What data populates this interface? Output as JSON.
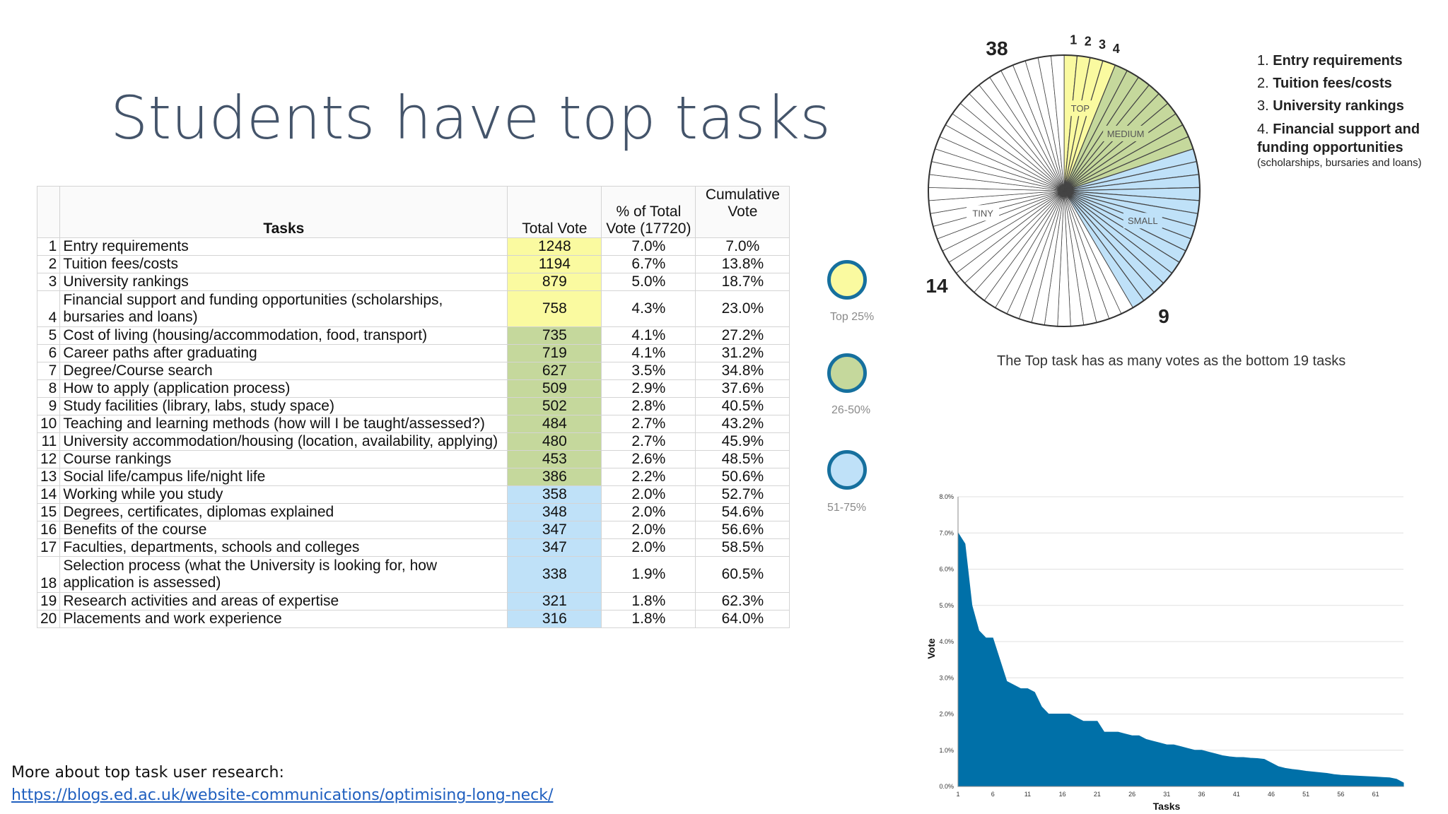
{
  "slide": {
    "title": "Students have top tasks",
    "footer_text": "More about top task user research:",
    "footer_link": "https://blogs.ed.ac.uk/website-communications/optimising-long-neck/"
  },
  "table": {
    "headers": [
      "Tasks",
      "Total Vote",
      "% of Total Vote (17720)",
      "Cumulative Vote"
    ],
    "rows": [
      {
        "n": "1",
        "task": "Entry requirements",
        "vote": "1248",
        "pct": "7.0%",
        "cum": "7.0%",
        "group": "top"
      },
      {
        "n": "2",
        "task": "Tuition fees/costs",
        "vote": "1194",
        "pct": "6.7%",
        "cum": "13.8%",
        "group": "top"
      },
      {
        "n": "3",
        "task": "University rankings",
        "vote": "879",
        "pct": "5.0%",
        "cum": "18.7%",
        "group": "top"
      },
      {
        "n": "4",
        "task": "Financial support and funding opportunities (scholarships, bursaries and loans)",
        "vote": "758",
        "pct": "4.3%",
        "cum": "23.0%",
        "group": "top"
      },
      {
        "n": "5",
        "task": "Cost of living (housing/accommodation, food, transport)",
        "vote": "735",
        "pct": "4.1%",
        "cum": "27.2%",
        "group": "mid"
      },
      {
        "n": "6",
        "task": "Career paths after graduating",
        "vote": "719",
        "pct": "4.1%",
        "cum": "31.2%",
        "group": "mid"
      },
      {
        "n": "7",
        "task": "Degree/Course search",
        "vote": "627",
        "pct": "3.5%",
        "cum": "34.8%",
        "group": "mid"
      },
      {
        "n": "8",
        "task": "How to apply (application process)",
        "vote": "509",
        "pct": "2.9%",
        "cum": "37.6%",
        "group": "mid"
      },
      {
        "n": "9",
        "task": "Study facilities (library, labs, study space)",
        "vote": "502",
        "pct": "2.8%",
        "cum": "40.5%",
        "group": "mid"
      },
      {
        "n": "10",
        "task": "Teaching and learning methods (how will I be taught/assessed?)",
        "vote": "484",
        "pct": "2.7%",
        "cum": "43.2%",
        "group": "mid"
      },
      {
        "n": "11",
        "task": "University accommodation/housing (location, availability, applying)",
        "vote": "480",
        "pct": "2.7%",
        "cum": "45.9%",
        "group": "mid"
      },
      {
        "n": "12",
        "task": "Course rankings",
        "vote": "453",
        "pct": "2.6%",
        "cum": "48.5%",
        "group": "mid"
      },
      {
        "n": "13",
        "task": "Social life/campus life/night life",
        "vote": "386",
        "pct": "2.2%",
        "cum": "50.6%",
        "group": "mid"
      },
      {
        "n": "14",
        "task": "Working while you study",
        "vote": "358",
        "pct": "2.0%",
        "cum": "52.7%",
        "group": "low"
      },
      {
        "n": "15",
        "task": "Degrees, certificates, diplomas explained",
        "vote": "348",
        "pct": "2.0%",
        "cum": "54.6%",
        "group": "low"
      },
      {
        "n": "16",
        "task": "Benefits of the course",
        "vote": "347",
        "pct": "2.0%",
        "cum": "56.6%",
        "group": "low"
      },
      {
        "n": "17",
        "task": "Faculties, departments, schools and colleges",
        "vote": "347",
        "pct": "2.0%",
        "cum": "58.5%",
        "group": "low"
      },
      {
        "n": "18",
        "task": "Selection process (what the University is looking for, how application is assessed)",
        "vote": "338",
        "pct": "1.9%",
        "cum": "60.5%",
        "group": "low"
      },
      {
        "n": "19",
        "task": "Research activities and areas of expertise",
        "vote": "321",
        "pct": "1.8%",
        "cum": "62.3%",
        "group": "low"
      },
      {
        "n": "20",
        "task": "Placements and work experience",
        "vote": "316",
        "pct": "1.8%",
        "cum": "64.0%",
        "group": "low"
      }
    ]
  },
  "colors": {
    "top": "#fafaa0",
    "mid": "#c5d89c",
    "low": "#bfe1f8",
    "tiny": "#ffffff",
    "title": "#44546a",
    "area": "#0070a8",
    "circle_border": "#16709e"
  },
  "legend": [
    {
      "label": "Top 25%",
      "color": "#fafaa0"
    },
    {
      "label": "26-50%",
      "color": "#c5d89c"
    },
    {
      "label": "51-75%",
      "color": "#bfe1f8"
    }
  ],
  "pie": {
    "segments": [
      {
        "name": "TOP",
        "count": 4,
        "color": "#fafaa0"
      },
      {
        "name": "MEDIUM",
        "count": 9,
        "color": "#c5d89c"
      },
      {
        "name": "SMALL",
        "count": 14,
        "color": "#bfe1f8"
      },
      {
        "name": "TINY",
        "count": 38,
        "color": "#ffffff"
      }
    ],
    "edge_labels": [
      "1",
      "2",
      "3",
      "4"
    ],
    "count_labels": {
      "top_count": "38",
      "small_count": "14",
      "medium_count": "9"
    },
    "legend": [
      {
        "n": "1.",
        "text": "Entry requirements"
      },
      {
        "n": "2.",
        "text": "Tuition fees/costs"
      },
      {
        "n": "3.",
        "text": "University rankings"
      },
      {
        "n": "4.",
        "text": "Financial support and funding opportunities"
      }
    ],
    "legend_sub": "(scholarships, bursaries and loans)",
    "caption": "The Top task has as many votes as the bottom 19 tasks"
  },
  "chart_data": {
    "type": "area",
    "xlabel": "Tasks",
    "ylabel": "Vote",
    "xticks": [
      "1",
      "6",
      "11",
      "16",
      "21",
      "26",
      "31",
      "36",
      "41",
      "46",
      "51",
      "56",
      "61"
    ],
    "yticks": [
      "0.0%",
      "1.0%",
      "2.0%",
      "3.0%",
      "4.0%",
      "5.0%",
      "6.0%",
      "7.0%",
      "8.0%"
    ],
    "ylim": [
      0,
      8
    ],
    "xlim": [
      1,
      65
    ],
    "grid": true,
    "x": [
      1,
      2,
      3,
      4,
      5,
      6,
      7,
      8,
      9,
      10,
      11,
      12,
      13,
      14,
      15,
      16,
      17,
      18,
      19,
      20,
      21,
      22,
      23,
      24,
      25,
      26,
      27,
      28,
      29,
      30,
      31,
      32,
      33,
      34,
      35,
      36,
      37,
      38,
      39,
      40,
      41,
      42,
      43,
      44,
      45,
      46,
      47,
      48,
      49,
      50,
      51,
      52,
      53,
      54,
      55,
      56,
      57,
      58,
      59,
      60,
      61,
      62,
      63,
      64,
      65
    ],
    "values": [
      7.0,
      6.7,
      5.0,
      4.3,
      4.1,
      4.1,
      3.5,
      2.9,
      2.8,
      2.7,
      2.7,
      2.6,
      2.2,
      2.0,
      2.0,
      2.0,
      2.0,
      1.9,
      1.8,
      1.8,
      1.8,
      1.5,
      1.5,
      1.5,
      1.45,
      1.4,
      1.4,
      1.3,
      1.25,
      1.2,
      1.15,
      1.15,
      1.1,
      1.05,
      1.0,
      1.0,
      0.95,
      0.9,
      0.85,
      0.82,
      0.8,
      0.8,
      0.78,
      0.77,
      0.75,
      0.65,
      0.55,
      0.5,
      0.47,
      0.45,
      0.42,
      0.4,
      0.38,
      0.36,
      0.33,
      0.31,
      0.3,
      0.29,
      0.28,
      0.27,
      0.26,
      0.25,
      0.24,
      0.2,
      0.1
    ]
  }
}
